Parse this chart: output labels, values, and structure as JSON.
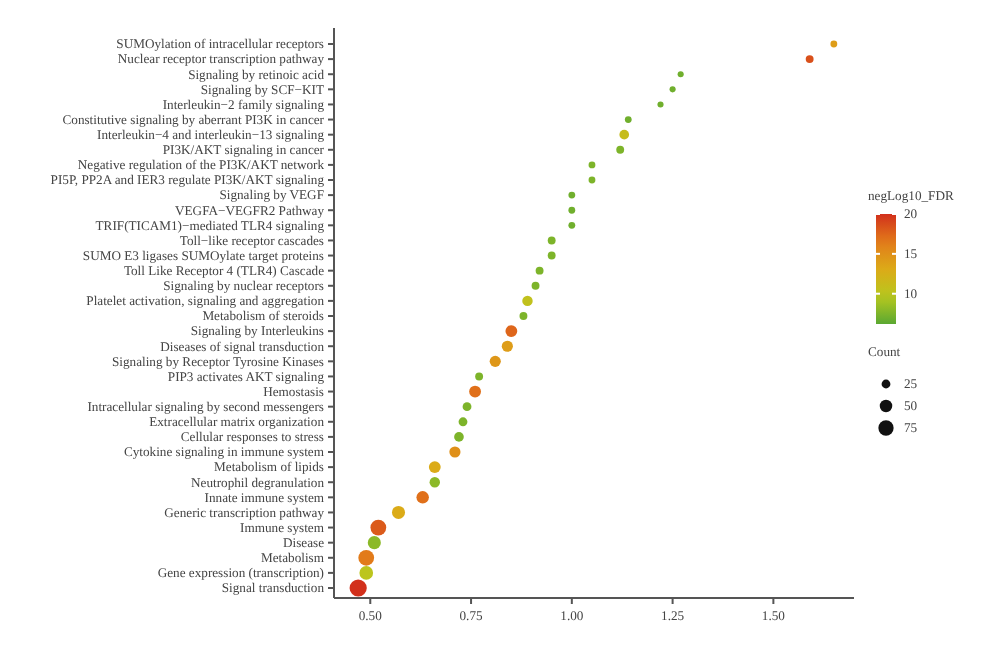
{
  "chart_data": {
    "type": "bubble",
    "orientation": "horizontal",
    "categories": [
      "SUMOylation of intracellular receptors",
      "Nuclear receptor transcription pathway",
      "Signaling by retinoic acid",
      "Signaling by SCF−KIT",
      "Interleukin−2 family signaling",
      "Constitutive signaling by aberrant PI3K in cancer",
      "Interleukin−4 and interleukin−13 signaling",
      "PI3K/AKT signaling in cancer",
      "Negative regulation of the PI3K/AKT network",
      "PI5P, PP2A and IER3 regulate PI3K/AKT signaling",
      "Signaling by VEGF",
      "VEGFA−VEGFR2 Pathway",
      "TRIF(TICAM1)−mediated TLR4 signaling",
      "Toll−like receptor cascades",
      "SUMO E3 ligases SUMOylate target proteins",
      "Toll Like Receptor 4 (TLR4) Cascade",
      "Signaling by nuclear receptors",
      "Platelet activation, signaling and aggregation",
      "Metabolism of steroids",
      "Signaling by Interleukins",
      "Diseases of signal transduction",
      "Signaling by Receptor Tyrosine Kinases",
      "PIP3 activates AKT signaling",
      "Hemostasis",
      "Intracellular signaling by second messengers",
      "Extracellular matrix organization",
      "Cellular responses to stress",
      "Cytokine signaling in immune system",
      "Metabolism of lipids",
      "Neutrophil degranulation",
      "Innate immune system",
      "Generic transcription pathway",
      "Immune system",
      "Disease",
      "Metabolism",
      "Gene expression (transcription)",
      "Signal transduction"
    ],
    "values": [
      1.65,
      1.59,
      1.27,
      1.25,
      1.22,
      1.14,
      1.13,
      1.12,
      1.05,
      1.05,
      1.0,
      1.0,
      1.0,
      0.95,
      0.95,
      0.92,
      0.91,
      0.89,
      0.88,
      0.85,
      0.84,
      0.81,
      0.77,
      0.76,
      0.74,
      0.73,
      0.72,
      0.71,
      0.66,
      0.66,
      0.63,
      0.57,
      0.52,
      0.51,
      0.49,
      0.49,
      0.47
    ],
    "sizes": [
      15,
      20,
      12,
      12,
      12,
      15,
      30,
      20,
      15,
      15,
      15,
      15,
      15,
      20,
      20,
      20,
      20,
      35,
      20,
      45,
      40,
      40,
      20,
      45,
      25,
      25,
      30,
      40,
      45,
      35,
      50,
      55,
      80,
      55,
      80,
      60,
      95
    ],
    "cvalues": [
      14,
      18.5,
      7,
      7,
      7,
      7,
      11,
      7.5,
      7.5,
      7.5,
      7,
      7,
      7,
      7.5,
      7.5,
      7.5,
      7.5,
      10.5,
      7.5,
      17.5,
      14,
      14.5,
      7.5,
      17,
      7.5,
      7.5,
      7.5,
      15,
      13,
      8,
      17,
      13,
      18,
      8,
      16.5,
      10,
      20
    ],
    "xlim": [
      0.41,
      1.7
    ],
    "xticks": [
      {
        "value": 0.5,
        "label": "0.50"
      },
      {
        "value": 0.75,
        "label": "0.75"
      },
      {
        "value": 1.0,
        "label": "1.00"
      },
      {
        "value": 1.25,
        "label": "1.25"
      },
      {
        "value": 1.5,
        "label": "1.50"
      }
    ],
    "clabel": "negLog10_FDR",
    "clim": [
      6.2,
      20
    ],
    "cticks": [
      10,
      15,
      20
    ],
    "legend_title": "Count",
    "size_legend": [
      25,
      50,
      75
    ],
    "marker": "circle",
    "grid": false
  }
}
